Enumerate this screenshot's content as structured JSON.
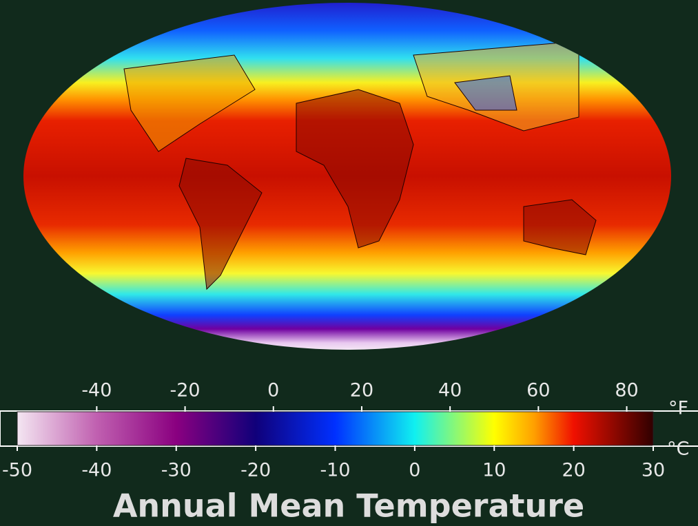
{
  "title": "Annual Mean Temperature",
  "colorbar": {
    "celsius_unit": "°C",
    "fahrenheit_unit": "°F",
    "celsius_lim": [
      -50,
      30
    ],
    "fahrenheit_lim": [
      -58,
      86
    ],
    "celsius_ticks": [
      -50,
      -40,
      -30,
      -20,
      -10,
      0,
      10,
      20,
      30
    ],
    "fahrenheit_ticks": [
      -40,
      -20,
      0,
      20,
      40,
      60,
      80
    ],
    "stops": [
      {
        "value": -50,
        "color": "#f4e6f2"
      },
      {
        "value": -40,
        "color": "#c060b0"
      },
      {
        "value": -30,
        "color": "#8a0080"
      },
      {
        "value": -20,
        "color": "#10007a"
      },
      {
        "value": -10,
        "color": "#0030ff"
      },
      {
        "value": 0,
        "color": "#10f0f0"
      },
      {
        "value": 10,
        "color": "#ffff00"
      },
      {
        "value": 15,
        "color": "#ffa000"
      },
      {
        "value": 20,
        "color": "#f01000"
      },
      {
        "value": 30,
        "color": "#300000"
      }
    ]
  }
}
